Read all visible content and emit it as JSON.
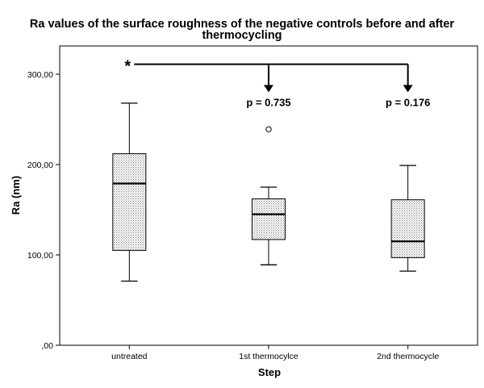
{
  "chart_data": {
    "type": "box",
    "title_line1": "Ra values of the surface roughness of the negative controls before and after",
    "title_line2": "thermocycling",
    "xlabel": "Step",
    "ylabel": "Ra (nm)",
    "ylim": [
      0,
      330
    ],
    "yticks": [
      0,
      100,
      200,
      300
    ],
    "ytick_labels": [
      ",00",
      "100,00",
      "200,00",
      "300,00"
    ],
    "grid": false,
    "categories": [
      "untreated",
      "1st thermocylce",
      "2nd thermocycle"
    ],
    "boxes": [
      {
        "category": "untreated",
        "min": 71,
        "q1": 105,
        "median": 179,
        "q3": 212,
        "max": 268,
        "outliers": []
      },
      {
        "category": "1st thermocylce",
        "min": 89,
        "q1": 117,
        "median": 145,
        "q3": 162,
        "max": 175,
        "outliers": [
          239
        ]
      },
      {
        "category": "2nd thermocycle",
        "min": 82,
        "q1": 97,
        "median": 115,
        "q3": 161,
        "max": 199,
        "outliers": []
      }
    ],
    "significance": {
      "marker": "*",
      "level": 311,
      "arrow_tip": 280,
      "comparisons": [
        {
          "to": "1st thermocylce",
          "label": "p = 0.735"
        },
        {
          "to": "2nd thermocycle",
          "label": "p = 0.176"
        }
      ]
    }
  }
}
